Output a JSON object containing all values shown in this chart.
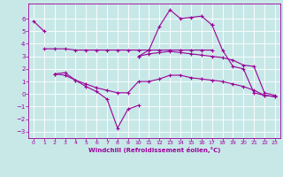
{
  "background_color": "#c8e8e8",
  "grid_color": "#aacccc",
  "line_color": "#990099",
  "marker": "+",
  "xlabel": "Windchill (Refroidissement éolien,°C)",
  "xlim": [
    -0.5,
    23.5
  ],
  "ylim": [
    -3.5,
    7.2
  ],
  "yticks": [
    -3,
    -2,
    -1,
    0,
    1,
    2,
    3,
    4,
    5,
    6
  ],
  "xticks": [
    0,
    1,
    2,
    3,
    4,
    5,
    6,
    7,
    8,
    9,
    10,
    11,
    12,
    13,
    14,
    15,
    16,
    17,
    18,
    19,
    20,
    21,
    22,
    23
  ],
  "lines": [
    {
      "segments": [
        {
          "x": [
            0,
            1
          ],
          "y": [
            5.8,
            5.0
          ]
        },
        {
          "x": [
            10,
            11,
            12,
            13,
            14,
            15,
            16,
            17
          ],
          "y": [
            3.0,
            3.5,
            5.4,
            6.7,
            6.0,
            6.1,
            6.2,
            5.5
          ]
        }
      ]
    },
    {
      "segments": [
        {
          "x": [
            1,
            2,
            3,
            4,
            5,
            6,
            7,
            8,
            9,
            10,
            11,
            12,
            13,
            14,
            15,
            16,
            17
          ],
          "y": [
            3.6,
            3.6,
            3.6,
            3.5,
            3.5,
            3.5,
            3.5,
            3.5,
            3.5,
            3.5,
            3.5,
            3.5,
            3.5,
            3.5,
            3.5,
            3.5,
            3.5
          ]
        }
      ]
    },
    {
      "segments": [
        {
          "x": [
            2,
            3,
            4,
            5,
            6,
            7,
            8,
            9,
            10
          ],
          "y": [
            1.6,
            1.7,
            1.1,
            0.6,
            0.2,
            -0.4,
            -2.7,
            -1.2,
            -0.9
          ]
        },
        {
          "x": [
            10,
            11,
            12,
            13,
            14,
            15,
            16,
            17,
            18,
            19,
            20,
            21,
            22,
            23
          ],
          "y": [
            3.0,
            3.2,
            3.3,
            3.4,
            3.3,
            3.2,
            3.1,
            3.0,
            2.9,
            2.7,
            2.3,
            2.2,
            0.1,
            -0.1
          ]
        }
      ]
    },
    {
      "segments": [
        {
          "x": [
            2,
            3,
            4,
            5,
            6,
            7,
            8,
            9,
            10,
            11,
            12,
            13,
            14,
            15,
            16,
            17,
            18,
            19,
            20,
            21,
            22,
            23
          ],
          "y": [
            1.6,
            1.5,
            1.1,
            0.8,
            0.5,
            0.3,
            0.1,
            0.1,
            1.0,
            1.0,
            1.2,
            1.5,
            1.5,
            1.3,
            1.2,
            1.1,
            1.0,
            0.8,
            0.6,
            0.3,
            -0.1,
            -0.2
          ]
        }
      ]
    },
    {
      "segments": [
        {
          "x": [
            17,
            18,
            19,
            20,
            21,
            22,
            23
          ],
          "y": [
            5.5,
            3.5,
            2.2,
            2.0,
            0.1,
            -0.1,
            -0.2
          ]
        }
      ]
    }
  ]
}
